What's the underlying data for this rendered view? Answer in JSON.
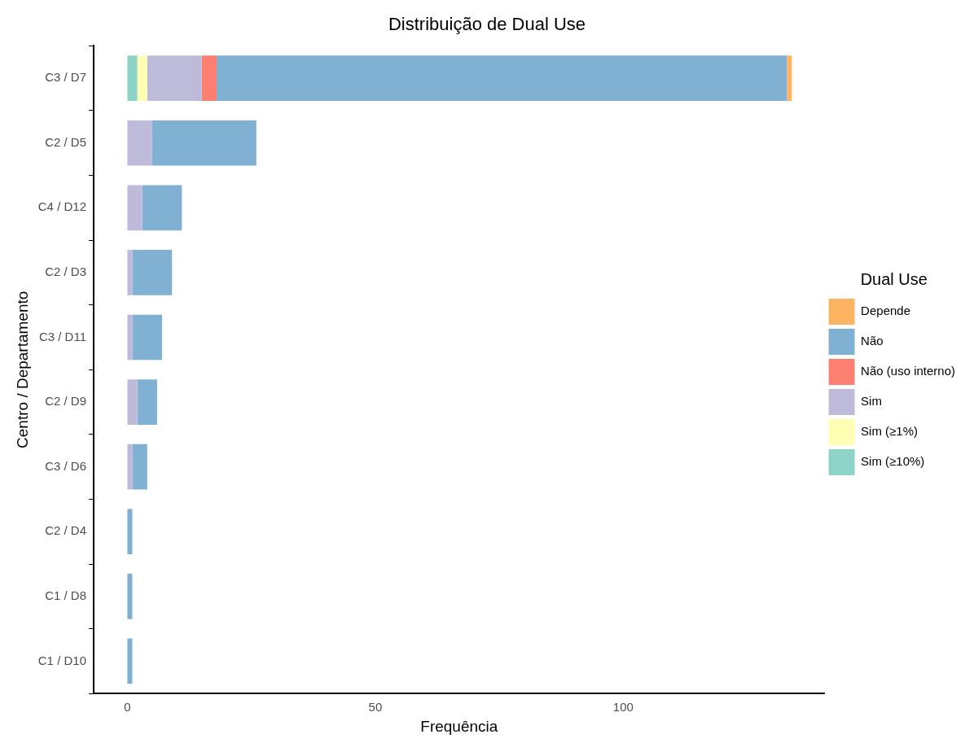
{
  "chart_data": {
    "type": "bar",
    "orientation": "horizontal",
    "stacked": true,
    "title": "Distribuição de Dual Use",
    "xlabel": "Frequência",
    "ylabel": "Centro / Departamento",
    "legend_title": "Dual Use",
    "legend": "right",
    "grid": false,
    "categories": [
      "C3 / D7",
      "C2 / D5",
      "C4 / D12",
      "C2 / D3",
      "C3 / D11",
      "C2 / D9",
      "C3 / D6",
      "C2 / D4",
      "C1 / D8",
      "C1 / D10"
    ],
    "xlim": [
      -6.8,
      140.6
    ],
    "xticks": [
      0,
      50,
      100
    ],
    "series": [
      {
        "name": "Sim (≥10%)",
        "color": "#8dd3c7",
        "values": [
          2,
          null,
          null,
          null,
          null,
          null,
          null,
          null,
          null,
          null
        ]
      },
      {
        "name": "Sim (≥1%)",
        "color": "#ffffb3",
        "values": [
          2,
          null,
          null,
          null,
          null,
          null,
          null,
          null,
          null,
          null
        ]
      },
      {
        "name": "Sim",
        "color": "#bebada",
        "values": [
          11,
          5,
          3,
          1,
          1,
          2,
          1,
          null,
          null,
          null
        ]
      },
      {
        "name": "Não (uso interno)",
        "color": "#fb8072",
        "values": [
          3,
          null,
          null,
          null,
          null,
          null,
          null,
          null,
          null,
          null
        ]
      },
      {
        "name": "Não",
        "color": "#80b1d3",
        "values": [
          115,
          21,
          8,
          8,
          6,
          4,
          3,
          1,
          1,
          1
        ]
      },
      {
        "name": "Depende",
        "color": "#fdb462",
        "values": [
          1,
          null,
          null,
          null,
          null,
          null,
          null,
          null,
          null,
          null
        ]
      }
    ]
  }
}
